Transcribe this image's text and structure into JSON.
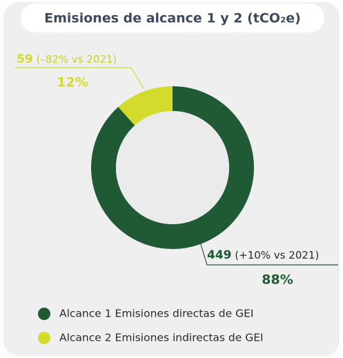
{
  "chart_data": {
    "type": "donut",
    "title": "Emisiones de alcance 1 y 2 (tCO₂e)",
    "categories": [
      "Alcance 1 Emisiones directas de GEI",
      "Alcance 2 Emisiones indirectas de GEI"
    ],
    "values": [
      449,
      59
    ],
    "colors": [
      "#1f5a34",
      "#d3dc2c"
    ],
    "shares": [
      "88%",
      "12%"
    ],
    "changes": [
      "(+10% vs 2021)",
      "(–82% vs 2021)"
    ],
    "legend": "bottom"
  }
}
